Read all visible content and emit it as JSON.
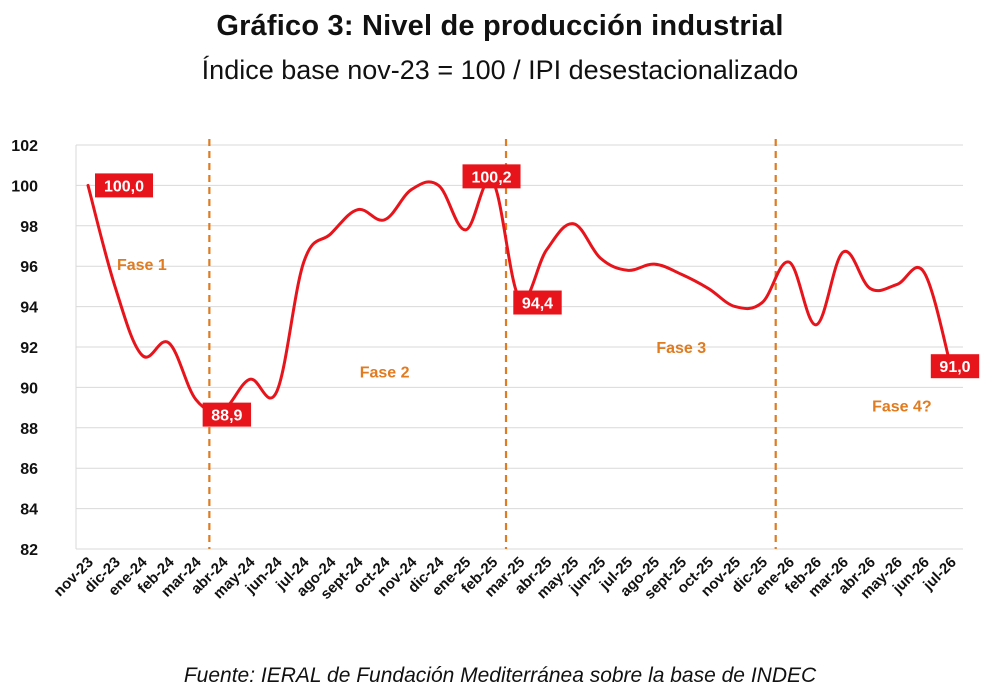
{
  "chart_data": {
    "type": "line",
    "title": "Gráfico 3: Nivel de producción industrial",
    "subtitle": "Índice base nov-23 = 100 / IPI desestacionalizado",
    "source": "Fuente: IERAL de Fundación Mediterránea sobre la base de INDEC",
    "xlabel": "",
    "ylabel": "",
    "ylim": [
      82,
      102
    ],
    "yticks": [
      "82",
      "84",
      "86",
      "88",
      "90",
      "92",
      "94",
      "96",
      "98",
      "100",
      "102"
    ],
    "grid": true,
    "categories": [
      "nov-23",
      "dic-23",
      "ene-24",
      "feb-24",
      "mar-24",
      "abr-24",
      "may-24",
      "jun-24",
      "jul-24",
      "ago-24",
      "sept-24",
      "oct-24",
      "nov-24",
      "dic-24",
      "ene-25",
      "feb-25",
      "mar-25",
      "abr-25",
      "may-25",
      "jun-25",
      "jul-25",
      "ago-25",
      "sept-25",
      "oct-25",
      "nov-25",
      "dic-25",
      "ene-26",
      "feb-26",
      "mar-26",
      "abr-26",
      "may-26",
      "jun-26",
      "jul-26"
    ],
    "series": [
      {
        "name": "",
        "color": "#E8141B",
        "values": [
          100.0,
          95.0,
          91.6,
          92.2,
          89.4,
          88.9,
          90.4,
          89.8,
          96.2,
          97.6,
          98.8,
          98.3,
          99.8,
          100.0,
          97.8,
          100.2,
          94.4,
          96.8,
          98.1,
          96.4,
          95.8,
          96.1,
          95.6,
          94.9,
          94.0,
          94.2,
          96.2,
          93.1,
          96.7,
          94.9,
          95.1,
          95.7,
          91.0
        ]
      }
    ],
    "phase_dividers_after": [
      "mar-24",
      "feb-25",
      "dic-25"
    ],
    "phase_labels": [
      {
        "text": "Fase 1",
        "x": "dic-23",
        "y": 95.8
      },
      {
        "text": "Fase 2",
        "x": "sept-24",
        "y": 90.5
      },
      {
        "text": "Fase 3",
        "x": "ago-25",
        "y": 91.7
      },
      {
        "text": "Fase 4?",
        "x": "abr-26",
        "y": 88.8
      }
    ],
    "divider_color": "#E07B20",
    "callouts": [
      {
        "text": "100,0",
        "x": "nov-23",
        "y": 100.0
      },
      {
        "text": "88,9",
        "x": "abr-24",
        "y": 88.9
      },
      {
        "text": "100,2",
        "x": "feb-25",
        "y": 100.2
      },
      {
        "text": "94,4",
        "x": "mar-25",
        "y": 94.4
      },
      {
        "text": "91,0",
        "x": "jul-26",
        "y": 91.0
      }
    ],
    "callout_color": "#E8141B"
  }
}
